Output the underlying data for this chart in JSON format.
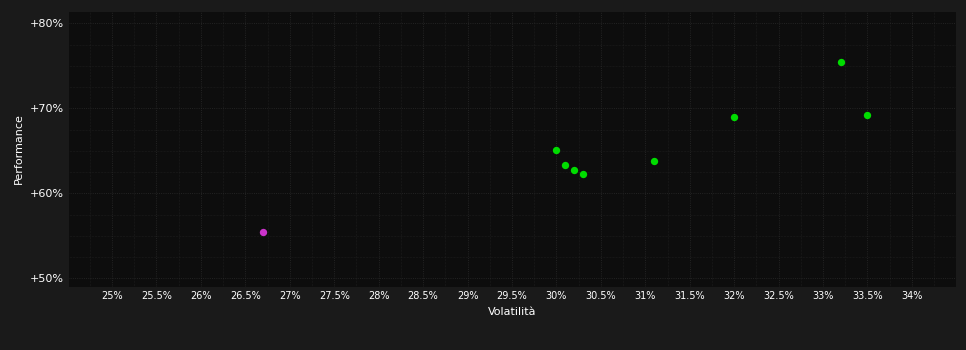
{
  "background_color": "#1a1a1a",
  "plot_bg_color": "#0d0d0d",
  "grid_color": "#2a2a2a",
  "text_color": "#ffffff",
  "xlabel": "Volatilità",
  "ylabel": "Performance",
  "xlim": [
    0.245,
    0.345
  ],
  "ylim": [
    0.49,
    0.815
  ],
  "xtick_values": [
    0.25,
    0.255,
    0.26,
    0.265,
    0.27,
    0.275,
    0.28,
    0.285,
    0.29,
    0.295,
    0.3,
    0.305,
    0.31,
    0.315,
    0.32,
    0.325,
    0.33,
    0.335,
    0.34
  ],
  "xtick_labels": [
    "25%",
    "25.5%",
    "26%",
    "26.5%",
    "27%",
    "27.5%",
    "28%",
    "28.5%",
    "29%",
    "29.5%",
    "30%",
    "30.5%",
    "31%",
    "31.5%",
    "32%",
    "32.5%",
    "33%",
    "33.5%",
    "34%"
  ],
  "ytick_values": [
    0.5,
    0.6,
    0.7,
    0.8
  ],
  "ytick_labels": [
    "+50%",
    "+60%",
    "+70%",
    "+80%"
  ],
  "green_points": [
    [
      0.3,
      0.651
    ],
    [
      0.301,
      0.633
    ],
    [
      0.302,
      0.627
    ],
    [
      0.303,
      0.623
    ],
    [
      0.311,
      0.638
    ],
    [
      0.32,
      0.69
    ],
    [
      0.332,
      0.754
    ],
    [
      0.335,
      0.692
    ]
  ],
  "magenta_points": [
    [
      0.267,
      0.555
    ]
  ],
  "green_color": "#00dd00",
  "magenta_color": "#cc33cc",
  "marker_size": 28,
  "figsize": [
    9.66,
    3.5
  ],
  "dpi": 100
}
